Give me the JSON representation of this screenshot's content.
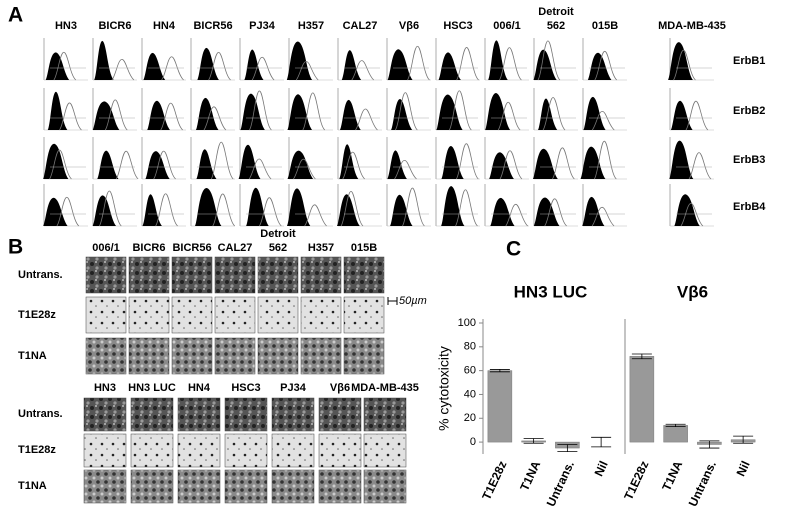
{
  "panel_a": {
    "label": "A",
    "cell_lines": [
      [
        "HN3"
      ],
      [
        "BICR6"
      ],
      [
        "HN4"
      ],
      [
        "BICR56"
      ],
      [
        "PJ34"
      ],
      [
        "H357"
      ],
      [
        "CAL27"
      ],
      [
        "Vβ6"
      ],
      [
        "HSC3"
      ],
      [
        "006/1"
      ],
      [
        "Detroit",
        "562"
      ],
      [
        "015B"
      ],
      [
        "MDA-MB-435"
      ]
    ],
    "receptors": [
      "ErbB1",
      "ErbB2",
      "ErbB3",
      "ErbB4"
    ]
  },
  "panel_b": {
    "label": "B",
    "scale_bar": "50µm",
    "rows": [
      "Untrans.",
      "T1E28z",
      "T1NA"
    ],
    "top_columns": [
      [
        "006/1"
      ],
      [
        "BICR6"
      ],
      [
        "BICR56"
      ],
      [
        "CAL27"
      ],
      [
        "Detroit",
        "562"
      ],
      [
        "H357"
      ],
      [
        "015B"
      ]
    ],
    "bottom_columns": [
      [
        "HN3"
      ],
      [
        "HN3 LUC"
      ],
      [
        "HN4"
      ],
      [
        "HSC3"
      ],
      [
        "PJ34"
      ],
      [
        "Vβ6"
      ],
      [
        "MDA-MB-435"
      ]
    ]
  },
  "panel_c": {
    "label": "C"
  },
  "chart_data": [
    {
      "type": "bar",
      "title": "HN3 LUC",
      "ylabel": "% cytotoxicity",
      "color": "#999999",
      "categories": [
        "T1E28z",
        "T1NA",
        "Untrans.",
        "Nil"
      ],
      "values": [
        60,
        1,
        -5,
        0
      ],
      "errors": [
        1,
        2,
        3,
        4
      ],
      "ylim": [
        -10,
        100
      ],
      "yticks": [
        0,
        20,
        40,
        60,
        80,
        100
      ]
    },
    {
      "type": "bar",
      "title": "Vβ6",
      "color": "#999999",
      "categories": [
        "T1E28z",
        "T1NA",
        "Untrans.",
        "Nil"
      ],
      "values": [
        72,
        14,
        -2,
        2
      ],
      "errors": [
        2,
        1,
        3,
        3
      ],
      "ylim": [
        -10,
        100
      ]
    }
  ]
}
